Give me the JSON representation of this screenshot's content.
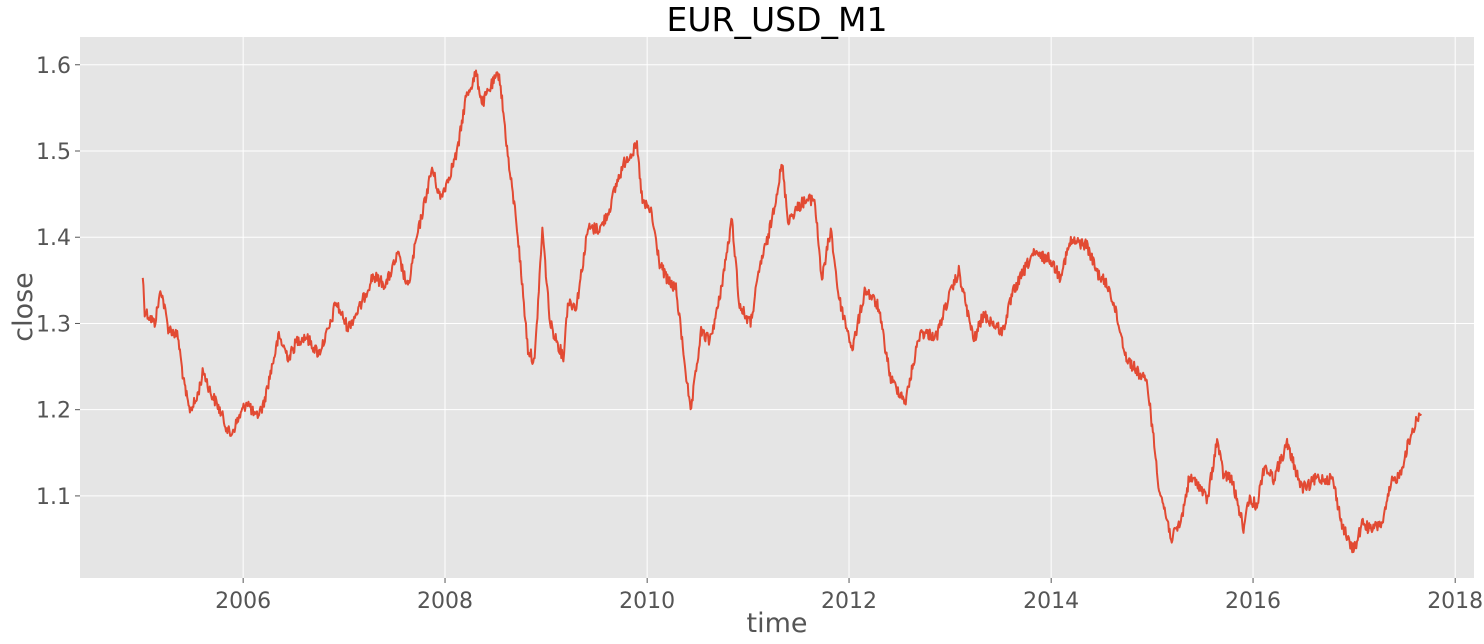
{
  "chart_data": {
    "type": "line",
    "title": "EUR_USD_M1",
    "xlabel": "time",
    "ylabel": "close",
    "xlim": [
      "2004-05-21",
      "2018-03-10"
    ],
    "ylim": [
      1.0048,
      1.6322
    ],
    "x_ticks": [
      "2006",
      "2008",
      "2010",
      "2012",
      "2014",
      "2016",
      "2018"
    ],
    "y_ticks": [
      "1.1",
      "1.2",
      "1.3",
      "1.4",
      "1.5",
      "1.6"
    ],
    "grid": true,
    "style": "ggplot",
    "colors": {
      "line": "#E24A33",
      "plot_bg": "#E5E5E5",
      "grid": "#FFFFFF",
      "tick_text": "#555555"
    },
    "series": [
      {
        "x": [
          "2005-01-03",
          "2005-01-10",
          "2005-02-15",
          "2005-03-10",
          "2005-04-05",
          "2005-05-10",
          "2005-06-01",
          "2005-06-20",
          "2005-07-15",
          "2005-08-10",
          "2005-09-05",
          "2005-10-01",
          "2005-11-15",
          "2005-12-01",
          "2006-01-15",
          "2006-02-15",
          "2006-03-15",
          "2006-04-15",
          "2006-05-10",
          "2006-06-15",
          "2006-07-15",
          "2006-08-15",
          "2006-10-01",
          "2006-11-15",
          "2006-12-01",
          "2007-01-15",
          "2007-03-01",
          "2007-04-15",
          "2007-06-01",
          "2007-07-15",
          "2007-08-20",
          "2007-09-15",
          "2007-11-15",
          "2007-12-15",
          "2008-01-15",
          "2008-02-15",
          "2008-03-15",
          "2008-04-22",
          "2008-05-15",
          "2008-06-15",
          "2008-07-15",
          "2008-08-20",
          "2008-09-15",
          "2008-10-27",
          "2008-11-20",
          "2008-12-18",
          "2009-01-15",
          "2009-03-04",
          "2009-03-20",
          "2009-04-20",
          "2009-06-01",
          "2009-07-15",
          "2009-08-15",
          "2009-09-15",
          "2009-10-15",
          "2009-11-25",
          "2009-12-15",
          "2010-01-15",
          "2010-02-15",
          "2010-03-15",
          "2010-04-15",
          "2010-05-15",
          "2010-06-07",
          "2010-07-15",
          "2010-08-15",
          "2010-09-15",
          "2010-11-04",
          "2010-12-01",
          "2011-01-10",
          "2011-02-15",
          "2011-03-15",
          "2011-05-04",
          "2011-05-25",
          "2011-07-15",
          "2011-08-29",
          "2011-09-25",
          "2011-10-27",
          "2011-11-25",
          "2012-01-13",
          "2012-02-29",
          "2012-04-15",
          "2012-05-31",
          "2012-07-24",
          "2012-08-15",
          "2012-09-14",
          "2012-11-13",
          "2012-12-15",
          "2013-02-01",
          "2013-03-27",
          "2013-05-01",
          "2013-07-09",
          "2013-08-15",
          "2013-10-25",
          "2013-12-27",
          "2014-02-01",
          "2014-03-13",
          "2014-05-08",
          "2014-06-15",
          "2014-07-31",
          "2014-08-25",
          "2014-09-30",
          "2014-11-07",
          "2014-12-15",
          "2015-01-26",
          "2015-03-13",
          "2015-04-15",
          "2015-05-15",
          "2015-06-15",
          "2015-07-20",
          "2015-08-24",
          "2015-09-15",
          "2015-10-15",
          "2015-11-30",
          "2015-12-15",
          "2016-01-15",
          "2016-02-11",
          "2016-03-15",
          "2016-05-03",
          "2016-06-24",
          "2016-07-15",
          "2016-08-15",
          "2016-09-15",
          "2016-10-15",
          "2016-11-15",
          "2016-12-20",
          "2017-01-03",
          "2017-02-01",
          "2017-03-01",
          "2017-04-15",
          "2017-05-15",
          "2017-06-15",
          "2017-07-15",
          "2017-08-15",
          "2017-08-31"
        ],
        "y": [
          1.355,
          1.315,
          1.3,
          1.34,
          1.295,
          1.285,
          1.23,
          1.2,
          1.21,
          1.245,
          1.22,
          1.205,
          1.17,
          1.18,
          1.21,
          1.19,
          1.205,
          1.25,
          1.285,
          1.26,
          1.28,
          1.285,
          1.265,
          1.3,
          1.325,
          1.295,
          1.32,
          1.355,
          1.345,
          1.38,
          1.34,
          1.39,
          1.48,
          1.445,
          1.47,
          1.5,
          1.56,
          1.59,
          1.555,
          1.575,
          1.59,
          1.48,
          1.42,
          1.27,
          1.255,
          1.41,
          1.3,
          1.26,
          1.325,
          1.32,
          1.41,
          1.41,
          1.43,
          1.465,
          1.49,
          1.505,
          1.44,
          1.43,
          1.37,
          1.35,
          1.34,
          1.26,
          1.195,
          1.29,
          1.28,
          1.32,
          1.42,
          1.32,
          1.3,
          1.37,
          1.4,
          1.485,
          1.42,
          1.44,
          1.445,
          1.35,
          1.41,
          1.33,
          1.27,
          1.34,
          1.32,
          1.235,
          1.21,
          1.245,
          1.29,
          1.285,
          1.32,
          1.36,
          1.28,
          1.31,
          1.29,
          1.335,
          1.38,
          1.375,
          1.355,
          1.395,
          1.392,
          1.36,
          1.34,
          1.31,
          1.26,
          1.245,
          1.23,
          1.11,
          1.05,
          1.07,
          1.12,
          1.115,
          1.095,
          1.165,
          1.125,
          1.12,
          1.06,
          1.095,
          1.09,
          1.135,
          1.12,
          1.16,
          1.11,
          1.11,
          1.12,
          1.12,
          1.12,
          1.07,
          1.04,
          1.04,
          1.07,
          1.06,
          1.07,
          1.115,
          1.125,
          1.16,
          1.19,
          1.195
        ]
      }
    ]
  }
}
